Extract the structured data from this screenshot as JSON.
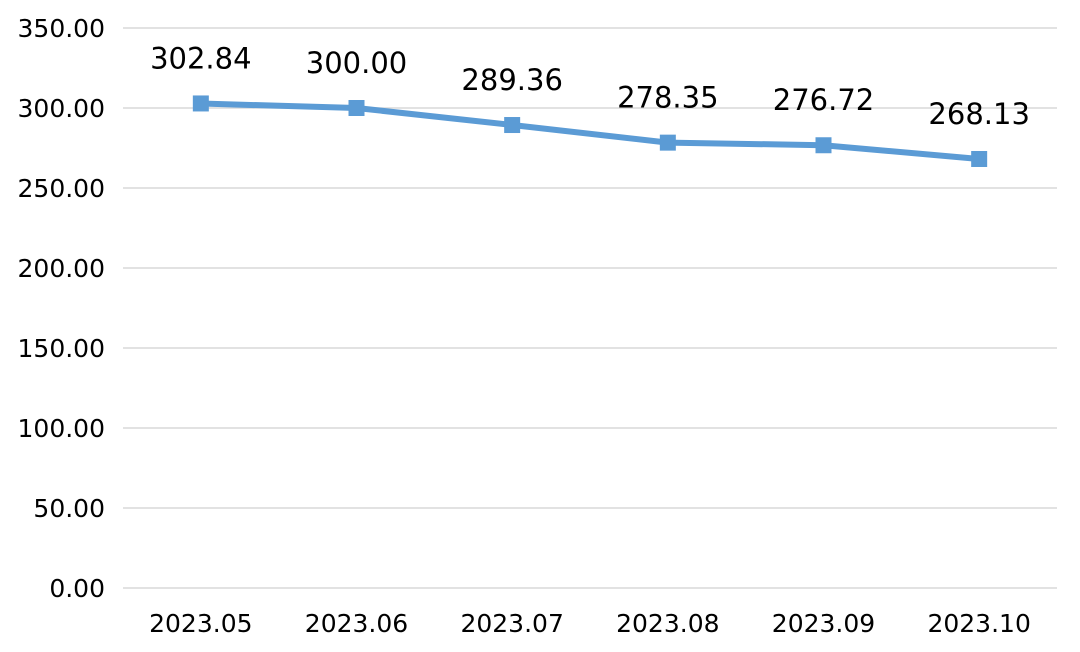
{
  "chart_data": {
    "type": "line",
    "title": "",
    "xlabel": "",
    "ylabel": "",
    "categories": [
      "2023.05",
      "2023.06",
      "2023.07",
      "2023.08",
      "2023.09",
      "2023.10"
    ],
    "series": [
      {
        "values": [
          302.84,
          300.0,
          289.36,
          278.35,
          276.72,
          268.13
        ],
        "data_labels": [
          "302.84",
          "300.00",
          "289.36",
          "278.35",
          "276.72",
          "268.13"
        ],
        "color": "#5b9bd5",
        "marker": "square"
      }
    ],
    "ylim": [
      0,
      350
    ],
    "yticks": [
      "0.00",
      "50.00",
      "100.00",
      "150.00",
      "200.00",
      "250.00",
      "300.00",
      "350.00"
    ],
    "grid": true,
    "legend": "none"
  }
}
